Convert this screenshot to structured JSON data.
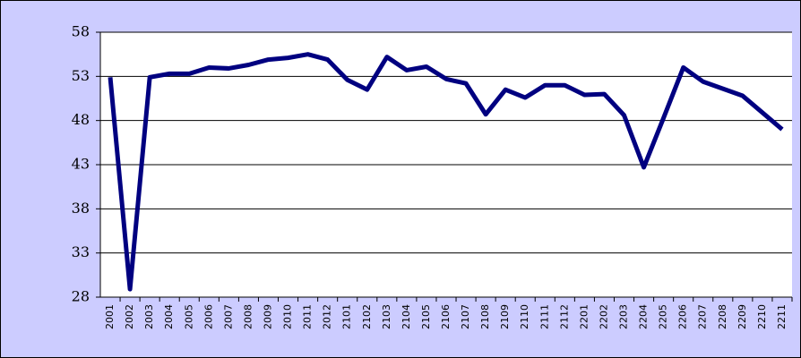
{
  "chart_data": {
    "type": "line",
    "categories": [
      "2001",
      "2002",
      "2003",
      "2004",
      "2005",
      "2006",
      "2007",
      "2008",
      "2009",
      "2010",
      "2011",
      "2012",
      "2101",
      "2102",
      "2103",
      "2104",
      "2105",
      "2106",
      "2107",
      "2108",
      "2109",
      "2110",
      "2111",
      "2112",
      "2201",
      "2202",
      "2203",
      "2204",
      "2205",
      "2206",
      "2207",
      "2208",
      "2209",
      "2210",
      "2211"
    ],
    "values": [
      52.9,
      28.9,
      52.9,
      53.3,
      53.3,
      54.0,
      53.9,
      54.3,
      54.9,
      55.1,
      55.5,
      54.9,
      52.6,
      51.5,
      55.2,
      53.7,
      54.1,
      52.7,
      52.2,
      48.7,
      51.5,
      50.6,
      52.0,
      52.0,
      50.9,
      51.0,
      48.6,
      42.7,
      48.3,
      54.0,
      52.4,
      51.6,
      50.8,
      48.9,
      47.0
    ],
    "color": "#000080",
    "ylim": [
      28,
      58
    ],
    "yticks": [
      28,
      33,
      38,
      43,
      48,
      53,
      58
    ],
    "grid": true
  }
}
